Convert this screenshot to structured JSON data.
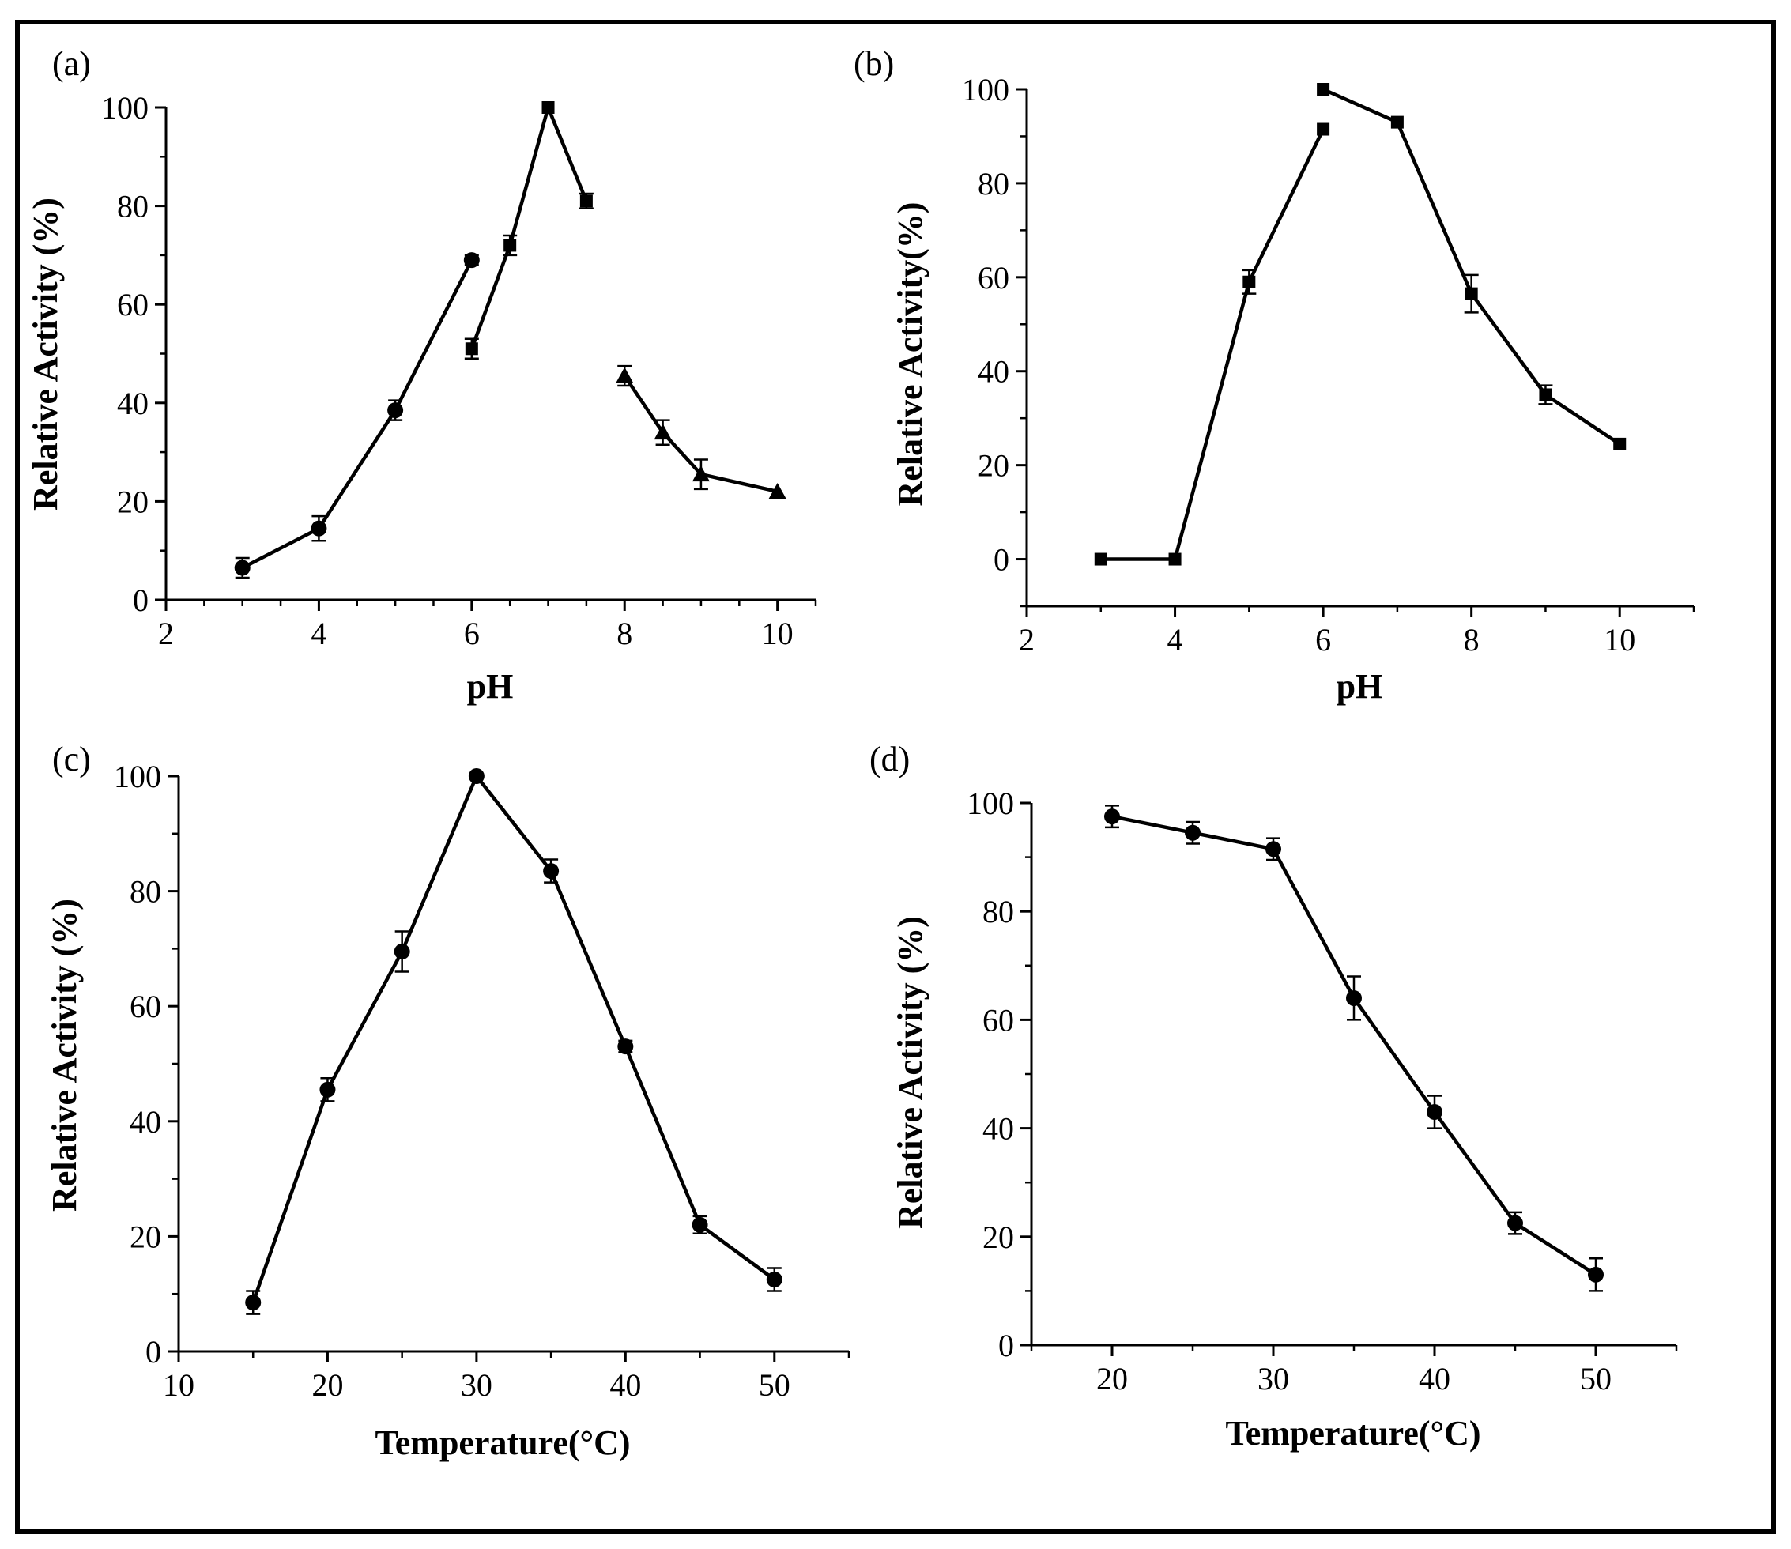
{
  "chart_data": [
    {
      "type": "line",
      "panel_label": "(a)",
      "xlabel": "pH",
      "ylabel": "Relative Activity (%)",
      "xlim": [
        2,
        10.5
      ],
      "ylim": [
        0,
        100
      ],
      "xticks": [
        2,
        4,
        6,
        8,
        10
      ],
      "yticks": [
        0,
        20,
        40,
        60,
        80,
        100
      ],
      "x_minor_step": 0.5,
      "y_minor_step": 10,
      "series": [
        {
          "name": "circle-series",
          "marker": "circle",
          "x": [
            3,
            4,
            5,
            6
          ],
          "y": [
            6.5,
            14.5,
            38.5,
            69
          ],
          "err": [
            2,
            2.5,
            2,
            1
          ]
        },
        {
          "name": "square-series",
          "marker": "square",
          "x": [
            6,
            6.5,
            7,
            7.5
          ],
          "y": [
            51,
            72,
            100,
            81
          ],
          "err": [
            2,
            2,
            0,
            1.5
          ]
        },
        {
          "name": "triangle-series",
          "marker": "triangle",
          "x": [
            8,
            8.5,
            9,
            10
          ],
          "y": [
            45.5,
            34,
            25.5,
            22
          ],
          "err": [
            2,
            2.5,
            3,
            0
          ]
        }
      ]
    },
    {
      "type": "line",
      "panel_label": "(b)",
      "xlabel": "pH",
      "ylabel": "Relative Activity(%)",
      "xlim": [
        2,
        11
      ],
      "ylim": [
        -10,
        100
      ],
      "xticks": [
        2,
        4,
        6,
        8,
        10
      ],
      "yticks": [
        0,
        20,
        40,
        60,
        80,
        100
      ],
      "x_minor_step": 1,
      "y_minor_step": 10,
      "series": [
        {
          "name": "square-series-1",
          "marker": "square",
          "x": [
            3,
            4,
            5,
            6
          ],
          "y": [
            0,
            0,
            59,
            91.5
          ],
          "err": [
            0,
            0,
            2.5,
            0
          ]
        },
        {
          "name": "square-series-2",
          "marker": "square",
          "x": [
            6,
            7,
            8,
            9,
            10
          ],
          "y": [
            100,
            93,
            56.5,
            35,
            24.5
          ],
          "err": [
            0,
            0,
            4,
            2,
            0
          ]
        }
      ]
    },
    {
      "type": "line",
      "panel_label": "(c)",
      "xlabel": "Temperature(°C)",
      "ylabel": "Relative Activity (%)",
      "xlim": [
        10,
        55
      ],
      "ylim": [
        0,
        100
      ],
      "xticks": [
        10,
        20,
        30,
        40,
        50
      ],
      "yticks": [
        0,
        20,
        40,
        60,
        80,
        100
      ],
      "x_minor_step": 5,
      "y_minor_step": 10,
      "series": [
        {
          "name": "circle-series",
          "marker": "circle",
          "x": [
            15,
            20,
            25,
            30,
            35,
            40,
            45,
            50
          ],
          "y": [
            8.5,
            45.5,
            69.5,
            100,
            83.5,
            53,
            22,
            12.5
          ],
          "err": [
            2,
            2,
            3.5,
            0,
            2,
            1,
            1.5,
            2
          ]
        }
      ]
    },
    {
      "type": "line",
      "panel_label": "(d)",
      "xlabel": "Temperature(°C)",
      "ylabel": "Relative Activity (%)",
      "xlim": [
        15,
        55
      ],
      "ylim": [
        0,
        100
      ],
      "xticks": [
        20,
        30,
        40,
        50
      ],
      "yticks": [
        0,
        20,
        40,
        60,
        80,
        100
      ],
      "x_minor_step": 5,
      "y_minor_step": 10,
      "series": [
        {
          "name": "circle-series",
          "marker": "circle",
          "x": [
            20,
            25,
            30,
            35,
            40,
            45,
            50
          ],
          "y": [
            97.5,
            94.5,
            91.5,
            64,
            43,
            22.5,
            13
          ],
          "err": [
            2,
            2,
            2,
            4,
            3,
            2,
            3
          ]
        }
      ]
    }
  ]
}
